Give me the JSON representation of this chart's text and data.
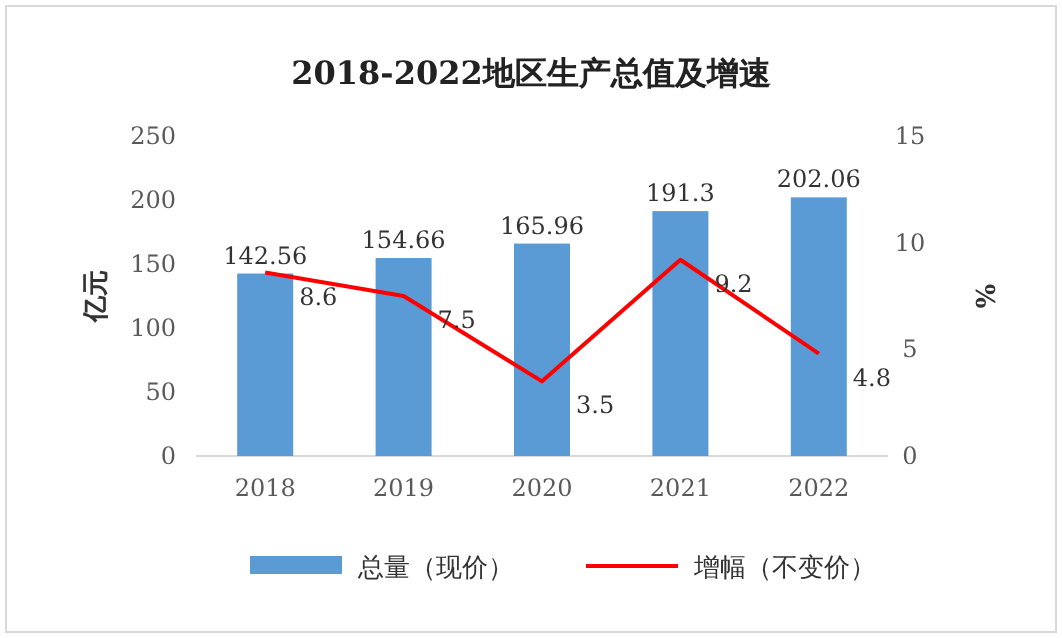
{
  "chart_data": {
    "type": "bar",
    "title": "2018-2022地区生产总值及增速",
    "ylabel": "亿元",
    "y2label": "%",
    "categories": [
      "2018",
      "2019",
      "2020",
      "2021",
      "2022"
    ],
    "series": [
      {
        "name": "总量（现价）",
        "color": "#5b9bd5",
        "values": [
          142.56,
          154.66,
          165.96,
          191.3,
          202.06
        ]
      },
      {
        "name": "增幅（不变价）",
        "type": "line",
        "axis": "y2",
        "color": "#ff0000",
        "values": [
          8.6,
          7.5,
          3.5,
          9.2,
          4.8
        ]
      }
    ],
    "ylim": [
      0,
      250
    ],
    "yticks": [
      0,
      50,
      100,
      150,
      200,
      250
    ],
    "y2lim": [
      0,
      15
    ],
    "y2ticks": [
      0,
      5,
      10,
      15
    ],
    "data_labels": true,
    "legend": "bottom"
  }
}
